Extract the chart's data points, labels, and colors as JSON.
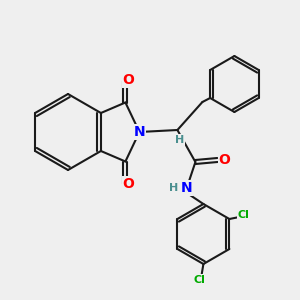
{
  "background_color": "#efefef",
  "bond_color": "#1a1a1a",
  "bond_width": 1.5,
  "atom_colors": {
    "O": "#ff0000",
    "N": "#0000ff",
    "Cl": "#00aa00",
    "H": "#4a8f8f",
    "C": "#1a1a1a"
  },
  "font_size": 9
}
